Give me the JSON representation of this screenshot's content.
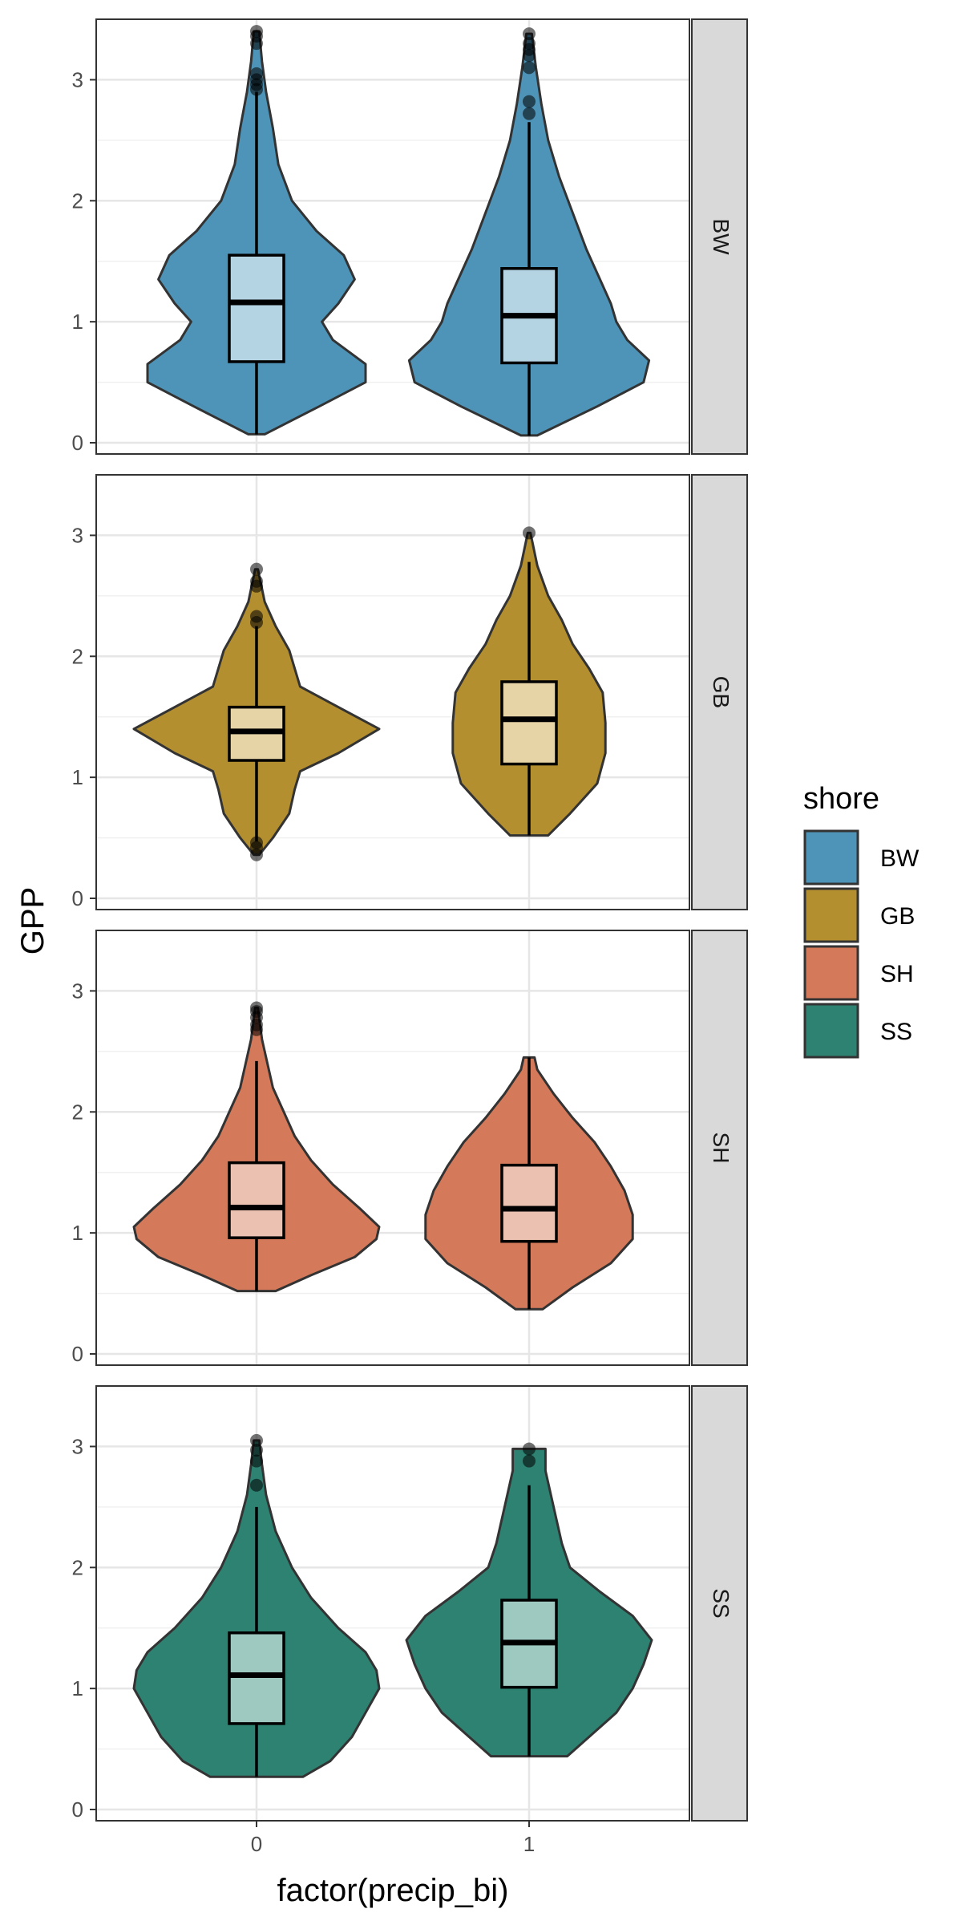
{
  "chart_data": {
    "type": "violin",
    "facet_by": "shore",
    "xlabel": "factor(precip_bi)",
    "ylabel": "GPP",
    "categories": [
      "0",
      "1"
    ],
    "ylim": [
      0,
      3.5
    ],
    "yticks": [
      0,
      1,
      2,
      3
    ],
    "grid": true,
    "legend": {
      "title": "shore",
      "position": "right",
      "entries": [
        {
          "label": "BW",
          "color": "#4e94b8"
        },
        {
          "label": "GB",
          "color": "#b48f30"
        },
        {
          "label": "SH",
          "color": "#d47a5a"
        },
        {
          "label": "SS",
          "color": "#2e8272"
        }
      ]
    },
    "panels": [
      {
        "strip": "BW",
        "color": "#4e94b8",
        "box_fill": "#b4d3e3",
        "groups": [
          {
            "x": "0",
            "box": {
              "ymin": 0.07,
              "q1": 0.67,
              "median": 1.16,
              "q3": 1.55,
              "ymax": 2.9
            },
            "outliers": [
              2.92,
              2.96,
              3.0,
              3.05,
              3.3,
              3.36,
              3.4
            ],
            "violin": {
              "ymin": 0.07,
              "ymax": 3.4,
              "y": [
                0.07,
                0.3,
                0.5,
                0.65,
                0.85,
                1.0,
                1.15,
                1.35,
                1.55,
                1.75,
                2.0,
                2.3,
                2.6,
                2.9,
                3.15,
                3.4
              ],
              "halfwidth": [
                0.03,
                0.23,
                0.4,
                0.4,
                0.28,
                0.24,
                0.3,
                0.36,
                0.32,
                0.22,
                0.13,
                0.08,
                0.06,
                0.035,
                0.02,
                0.01
              ]
            }
          },
          {
            "x": "1",
            "box": {
              "ymin": 0.06,
              "q1": 0.66,
              "median": 1.05,
              "q3": 1.44,
              "ymax": 2.65
            },
            "outliers": [
              2.72,
              2.82,
              3.1,
              3.2,
              3.25,
              3.3,
              3.38
            ],
            "violin": {
              "ymin": 0.06,
              "ymax": 3.38,
              "y": [
                0.06,
                0.3,
                0.5,
                0.68,
                0.85,
                1.0,
                1.15,
                1.35,
                1.6,
                1.9,
                2.2,
                2.5,
                2.8,
                3.1,
                3.38
              ],
              "halfwidth": [
                0.03,
                0.25,
                0.42,
                0.44,
                0.36,
                0.32,
                0.3,
                0.26,
                0.21,
                0.16,
                0.11,
                0.07,
                0.045,
                0.025,
                0.01
              ]
            }
          }
        ]
      },
      {
        "strip": "GB",
        "color": "#b48f30",
        "box_fill": "#e6d3a6",
        "groups": [
          {
            "x": "0",
            "box": {
              "ymin": 0.47,
              "q1": 1.14,
              "median": 1.38,
              "q3": 1.58,
              "ymax": 2.25
            },
            "outliers": [
              0.36,
              0.42,
              0.46,
              2.28,
              2.33,
              2.58,
              2.62,
              2.72
            ],
            "violin": {
              "ymin": 0.36,
              "ymax": 2.72,
              "y": [
                0.36,
                0.5,
                0.7,
                0.9,
                1.05,
                1.2,
                1.4,
                1.58,
                1.75,
                1.9,
                2.05,
                2.25,
                2.45,
                2.72
              ],
              "halfwidth": [
                0.01,
                0.06,
                0.12,
                0.14,
                0.16,
                0.3,
                0.45,
                0.3,
                0.16,
                0.14,
                0.12,
                0.07,
                0.03,
                0.005
              ]
            }
          },
          {
            "x": "1",
            "box": {
              "ymin": 0.52,
              "q1": 1.11,
              "median": 1.48,
              "q3": 1.79,
              "ymax": 2.78
            },
            "outliers": [
              3.02
            ],
            "violin": {
              "ymin": 0.52,
              "ymax": 3.02,
              "y": [
                0.52,
                0.7,
                0.95,
                1.2,
                1.45,
                1.7,
                1.9,
                2.1,
                2.3,
                2.5,
                2.75,
                3.02
              ],
              "halfwidth": [
                0.07,
                0.15,
                0.25,
                0.28,
                0.28,
                0.27,
                0.22,
                0.16,
                0.12,
                0.07,
                0.03,
                0.005
              ]
            }
          }
        ]
      },
      {
        "strip": "SH",
        "color": "#d47a5a",
        "box_fill": "#ebc1b1",
        "groups": [
          {
            "x": "0",
            "box": {
              "ymin": 0.52,
              "q1": 0.96,
              "median": 1.21,
              "q3": 1.58,
              "ymax": 2.42
            },
            "outliers": [
              2.68,
              2.72,
              2.78,
              2.83,
              2.86
            ],
            "violin": {
              "ymin": 0.52,
              "ymax": 2.86,
              "y": [
                0.52,
                0.65,
                0.8,
                0.95,
                1.05,
                1.2,
                1.4,
                1.6,
                1.8,
                2.0,
                2.2,
                2.4,
                2.6,
                2.86
              ],
              "halfwidth": [
                0.07,
                0.2,
                0.36,
                0.44,
                0.45,
                0.38,
                0.28,
                0.2,
                0.14,
                0.1,
                0.06,
                0.04,
                0.02,
                0.005
              ]
            }
          },
          {
            "x": "1",
            "box": {
              "ymin": 0.37,
              "q1": 0.93,
              "median": 1.2,
              "q3": 1.56,
              "ymax": 2.45
            },
            "outliers": [],
            "violin": {
              "ymin": 0.37,
              "ymax": 2.45,
              "y": [
                0.37,
                0.55,
                0.75,
                0.95,
                1.15,
                1.35,
                1.55,
                1.75,
                1.95,
                2.15,
                2.35,
                2.45
              ],
              "halfwidth": [
                0.05,
                0.16,
                0.3,
                0.38,
                0.38,
                0.35,
                0.3,
                0.24,
                0.16,
                0.09,
                0.03,
                0.02
              ]
            }
          }
        ]
      },
      {
        "strip": "SS",
        "color": "#2e8272",
        "box_fill": "#9dc9c1",
        "groups": [
          {
            "x": "0",
            "box": {
              "ymin": 0.27,
              "q1": 0.71,
              "median": 1.11,
              "q3": 1.46,
              "ymax": 2.5
            },
            "outliers": [
              2.68,
              2.88,
              2.97,
              3.05
            ],
            "violin": {
              "ymin": 0.27,
              "ymax": 3.05,
              "y": [
                0.27,
                0.4,
                0.6,
                0.8,
                1.0,
                1.15,
                1.3,
                1.5,
                1.75,
                2.0,
                2.3,
                2.6,
                2.85,
                3.05
              ],
              "halfwidth": [
                0.17,
                0.27,
                0.35,
                0.4,
                0.45,
                0.44,
                0.4,
                0.3,
                0.2,
                0.13,
                0.07,
                0.035,
                0.02,
                0.01
              ]
            }
          },
          {
            "x": "1",
            "box": {
              "ymin": 0.44,
              "q1": 1.01,
              "median": 1.38,
              "q3": 1.73,
              "ymax": 2.68
            },
            "outliers": [
              2.88,
              2.98
            ],
            "violin": {
              "ymin": 0.44,
              "ymax": 2.98,
              "y": [
                0.44,
                0.6,
                0.8,
                1.0,
                1.2,
                1.4,
                1.6,
                1.8,
                2.0,
                2.2,
                2.4,
                2.6,
                2.8,
                2.98
              ],
              "halfwidth": [
                0.14,
                0.22,
                0.32,
                0.38,
                0.42,
                0.45,
                0.38,
                0.26,
                0.15,
                0.12,
                0.1,
                0.08,
                0.06,
                0.06
              ]
            }
          }
        ]
      }
    ]
  }
}
